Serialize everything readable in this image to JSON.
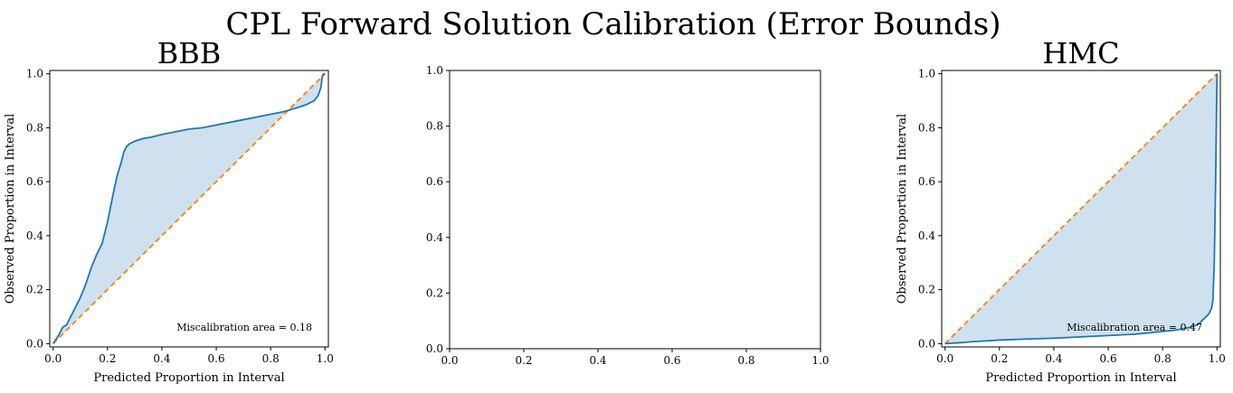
{
  "figure": {
    "title": "CPL Forward Solution Calibration (Error Bounds)"
  },
  "chart_data": [
    {
      "type": "line",
      "title": "BBB",
      "xlabel": "Predicted Proportion in Interval",
      "ylabel": "Observed Proportion in Interval",
      "xlim": [
        0,
        1
      ],
      "ylim": [
        0,
        1
      ],
      "xticks": [
        "0.0",
        "0.2",
        "0.4",
        "0.6",
        "0.8",
        "1.0"
      ],
      "yticks": [
        "0.0",
        "0.2",
        "0.4",
        "0.6",
        "0.8",
        "1.0"
      ],
      "annotation": "Miscalibration area = 0.18",
      "grid": false,
      "fill_between": true,
      "colors": {
        "curve": "#1f77b4",
        "ideal": "#ff7f0e",
        "fill": "#cfe1ef"
      },
      "series": [
        {
          "x": [
            0,
            0.02,
            0.035,
            0.05,
            0.065,
            0.08,
            0.1,
            0.12,
            0.14,
            0.16,
            0.18,
            0.2,
            0.21,
            0.22,
            0.235,
            0.25,
            0.26,
            0.27,
            0.28,
            0.3,
            0.33,
            0.36,
            0.4,
            0.45,
            0.5,
            0.55,
            0.6,
            0.65,
            0.7,
            0.75,
            0.8,
            0.85,
            0.9,
            0.93,
            0.96,
            0.975,
            0.985,
            0.99,
            0.995,
            1.0
          ],
          "y": [
            0,
            0.03,
            0.06,
            0.07,
            0.1,
            0.13,
            0.17,
            0.22,
            0.28,
            0.33,
            0.37,
            0.45,
            0.5,
            0.55,
            0.62,
            0.67,
            0.71,
            0.73,
            0.74,
            0.75,
            0.76,
            0.765,
            0.775,
            0.785,
            0.795,
            0.8,
            0.81,
            0.82,
            0.83,
            0.84,
            0.85,
            0.86,
            0.875,
            0.885,
            0.9,
            0.92,
            0.95,
            0.99,
            1.0,
            1.0
          ]
        },
        {
          "x": [
            0,
            1
          ],
          "y": [
            0,
            1
          ]
        }
      ]
    },
    {
      "type": "line",
      "title": "",
      "xlabel": "",
      "ylabel": "",
      "xlim": [
        0,
        1
      ],
      "ylim": [
        0,
        1
      ],
      "xticks": [
        "0.0",
        "0.2",
        "0.4",
        "0.6",
        "0.8",
        "1.0"
      ],
      "yticks": [
        "0.0",
        "0.2",
        "0.4",
        "0.6",
        "0.8",
        "1.0"
      ],
      "annotation": "",
      "grid": false,
      "fill_between": false,
      "colors": {
        "curve": "#1f77b4",
        "ideal": "#ff7f0e",
        "fill": "#cfe1ef"
      },
      "series": []
    },
    {
      "type": "line",
      "title": "HMC",
      "xlabel": "Predicted Proportion in Interval",
      "ylabel": "Observed Proportion in Interval",
      "xlim": [
        0,
        1
      ],
      "ylim": [
        0,
        1
      ],
      "xticks": [
        "0.0",
        "0.2",
        "0.4",
        "0.6",
        "0.8",
        "1.0"
      ],
      "yticks": [
        "0.0",
        "0.2",
        "0.4",
        "0.6",
        "0.8",
        "1.0"
      ],
      "annotation": "Miscalibration area = 0.47",
      "grid": false,
      "fill_between": true,
      "colors": {
        "curve": "#1f77b4",
        "ideal": "#ff7f0e",
        "fill": "#cfe1ef"
      },
      "series": [
        {
          "x": [
            0,
            0.05,
            0.1,
            0.15,
            0.2,
            0.3,
            0.4,
            0.5,
            0.6,
            0.7,
            0.8,
            0.85,
            0.9,
            0.93,
            0.95,
            0.97,
            0.98,
            0.985,
            0.99,
            0.995,
            1.0
          ],
          "y": [
            0,
            0.003,
            0.007,
            0.01,
            0.013,
            0.017,
            0.02,
            0.025,
            0.03,
            0.035,
            0.045,
            0.05,
            0.06,
            0.07,
            0.09,
            0.11,
            0.13,
            0.16,
            0.3,
            0.6,
            1.0
          ]
        },
        {
          "x": [
            0,
            1
          ],
          "y": [
            0,
            1
          ]
        }
      ]
    }
  ]
}
